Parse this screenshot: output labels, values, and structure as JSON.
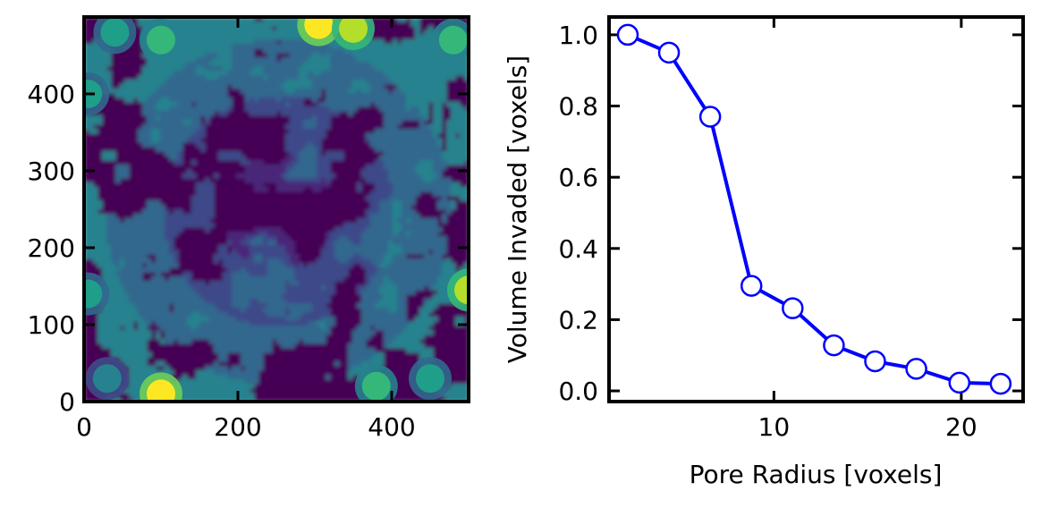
{
  "chart_data": [
    {
      "type": "heatmap",
      "title": "",
      "xlabel": "",
      "ylabel": "",
      "xlim": [
        0,
        500
      ],
      "ylim": [
        0,
        500
      ],
      "xticks": [
        0,
        200,
        400
      ],
      "yticks": [
        0,
        100,
        200,
        300,
        400
      ],
      "colormap": "viridis",
      "grid": false,
      "colors": {
        "background": "#440154",
        "levels": [
          "#482878",
          "#3e4a89",
          "#31688e",
          "#26828e",
          "#1f9e89",
          "#35b779",
          "#6ece58",
          "#b5de2b",
          "#fde725"
        ]
      },
      "blobs": [
        {
          "x": 100,
          "y": 10,
          "level": 8
        },
        {
          "x": 305,
          "y": 490,
          "level": 8
        },
        {
          "x": 350,
          "y": 485,
          "level": 7
        },
        {
          "x": 500,
          "y": 145,
          "level": 7
        },
        {
          "x": 100,
          "y": 470,
          "level": 5
        },
        {
          "x": 40,
          "y": 480,
          "level": 4
        },
        {
          "x": 5,
          "y": 400,
          "level": 4
        },
        {
          "x": 5,
          "y": 140,
          "level": 4
        },
        {
          "x": 480,
          "y": 470,
          "level": 5
        },
        {
          "x": 450,
          "y": 30,
          "level": 4
        },
        {
          "x": 30,
          "y": 30,
          "level": 3
        },
        {
          "x": 380,
          "y": 20,
          "level": 5
        }
      ]
    },
    {
      "type": "line",
      "title": "",
      "xlabel": "Pore Radius [voxels]",
      "ylabel": "Volume Invaded [voxels]",
      "xlim": [
        1.2,
        23.3
      ],
      "ylim": [
        -0.03,
        1.05
      ],
      "xticks": [
        10,
        20
      ],
      "yticks": [
        0.0,
        0.2,
        0.4,
        0.6,
        0.8,
        1.0
      ],
      "ytick_labels": [
        "0.0",
        "0.2",
        "0.4",
        "0.6",
        "0.8",
        "1.0"
      ],
      "grid": false,
      "legend": "none",
      "series": [
        {
          "color": "#0000ff",
          "marker": "circle-open",
          "x": [
            2.2,
            4.4,
            6.6,
            8.8,
            11.0,
            13.2,
            15.4,
            17.6,
            19.9,
            22.1
          ],
          "y": [
            1.0,
            0.95,
            0.77,
            0.295,
            0.232,
            0.128,
            0.083,
            0.062,
            0.023,
            0.02
          ]
        }
      ]
    }
  ]
}
